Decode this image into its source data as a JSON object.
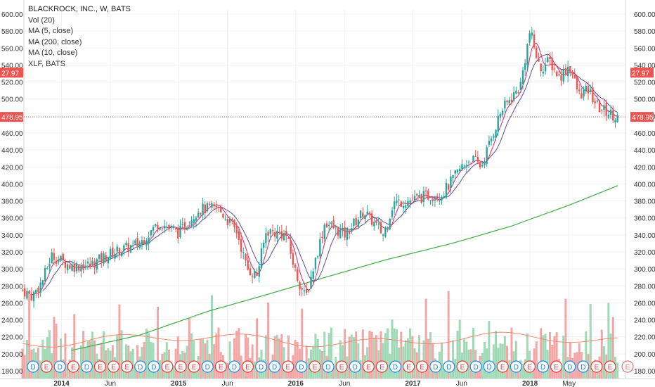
{
  "legend": {
    "title": "BLACKROCK, INC., W, BATS",
    "vol": "Vol (20)",
    "ma5": "MA (5, close)",
    "ma200": "MA (200, close)",
    "ma10": "MA (10, close)",
    "compare": "XLF, BATS"
  },
  "price_labels": {
    "last_price": "478.95",
    "xlf_price": "27.97"
  },
  "chart_data": {
    "type": "candlestick",
    "title": "BLACKROCK, INC., W, BATS",
    "ylim": [
      180,
      600
    ],
    "y_ticks": [
      "180.00",
      "200.00",
      "220.00",
      "240.00",
      "260.00",
      "280.00",
      "300.00",
      "320.00",
      "340.00",
      "360.00",
      "380.00",
      "400.00",
      "420.00",
      "440.00",
      "460.00",
      "480.00",
      "500.00",
      "520.00",
      "540.00",
      "560.00",
      "580.00",
      "600.00"
    ],
    "x_ticks": [
      "2014",
      "Jun",
      "2015",
      "Jun",
      "2016",
      "Jun",
      "2017",
      "Jun",
      "2018",
      "May"
    ],
    "x_tick_dates": [
      "2014-01",
      "2014-06",
      "2015-01",
      "2015-06",
      "2016-01",
      "2016-06",
      "2017-01",
      "2017-06",
      "2018-01",
      "2018-05"
    ],
    "x_range": [
      "2013-09",
      "2018-11"
    ],
    "price_path": [
      {
        "date": "2013-09",
        "close": 275
      },
      {
        "date": "2013-10",
        "close": 268
      },
      {
        "date": "2013-11",
        "close": 285
      },
      {
        "date": "2013-12",
        "close": 316
      },
      {
        "date": "2014-02",
        "close": 303
      },
      {
        "date": "2014-04",
        "close": 305
      },
      {
        "date": "2014-06",
        "close": 318
      },
      {
        "date": "2014-09",
        "close": 330
      },
      {
        "date": "2014-11",
        "close": 355
      },
      {
        "date": "2015-01",
        "close": 342
      },
      {
        "date": "2015-03",
        "close": 370
      },
      {
        "date": "2015-05",
        "close": 372
      },
      {
        "date": "2015-07",
        "close": 343
      },
      {
        "date": "2015-08",
        "close": 300
      },
      {
        "date": "2015-09",
        "close": 292
      },
      {
        "date": "2015-10",
        "close": 345
      },
      {
        "date": "2015-12",
        "close": 340
      },
      {
        "date": "2016-01",
        "close": 295
      },
      {
        "date": "2016-02",
        "close": 265
      },
      {
        "date": "2016-04",
        "close": 355
      },
      {
        "date": "2016-06",
        "close": 340
      },
      {
        "date": "2016-08",
        "close": 368
      },
      {
        "date": "2016-10",
        "close": 340
      },
      {
        "date": "2016-11",
        "close": 378
      },
      {
        "date": "2017-01",
        "close": 381
      },
      {
        "date": "2017-02",
        "close": 385
      },
      {
        "date": "2017-04",
        "close": 388
      },
      {
        "date": "2017-06",
        "close": 420
      },
      {
        "date": "2017-07",
        "close": 430
      },
      {
        "date": "2017-08",
        "close": 420
      },
      {
        "date": "2017-10",
        "close": 485
      },
      {
        "date": "2017-12",
        "close": 515
      },
      {
        "date": "2018-01",
        "close": 580
      },
      {
        "date": "2018-02",
        "close": 535
      },
      {
        "date": "2018-03",
        "close": 545
      },
      {
        "date": "2018-04",
        "close": 525
      },
      {
        "date": "2018-05",
        "close": 540
      },
      {
        "date": "2018-06",
        "close": 505
      },
      {
        "date": "2018-07",
        "close": 510
      },
      {
        "date": "2018-08",
        "close": 490
      },
      {
        "date": "2018-10",
        "close": 479
      }
    ],
    "ma200_path": [
      {
        "date": "2014-02",
        "value": 204
      },
      {
        "date": "2014-09",
        "value": 222
      },
      {
        "date": "2015-04",
        "value": 250
      },
      {
        "date": "2015-11",
        "value": 273
      },
      {
        "date": "2016-04",
        "value": 290
      },
      {
        "date": "2016-10",
        "value": 310
      },
      {
        "date": "2017-05",
        "value": 330
      },
      {
        "date": "2017-11",
        "value": 350
      },
      {
        "date": "2018-05",
        "value": 375
      },
      {
        "date": "2018-10",
        "value": 398
      }
    ],
    "volume_avg_level": "low band near bottom",
    "last_price": 478.95,
    "xlf_price": 27.97,
    "event_markers": [
      "D",
      "E",
      "D",
      "E",
      "D",
      "E",
      "E",
      "E",
      "D",
      "D",
      "E",
      "E",
      "E",
      "D",
      "E",
      "D",
      "E",
      "D",
      "D",
      "E",
      "D",
      "E",
      "D",
      "E",
      "D",
      "E",
      "E",
      "D",
      "E",
      "E",
      "D",
      "D",
      "E",
      "D",
      "D",
      "E",
      "D",
      "E",
      "D",
      "E",
      "D",
      "D",
      "E",
      "E"
    ],
    "colors": {
      "up": "#26a69a",
      "down": "#ef5350",
      "ma5": "#e91e63",
      "ma10": "#5b4b9a",
      "ma200": "#4caf50",
      "volume_up": "#9fd9b5",
      "volume_down": "#f4a6a6",
      "price_tag": "#ef5350"
    }
  }
}
